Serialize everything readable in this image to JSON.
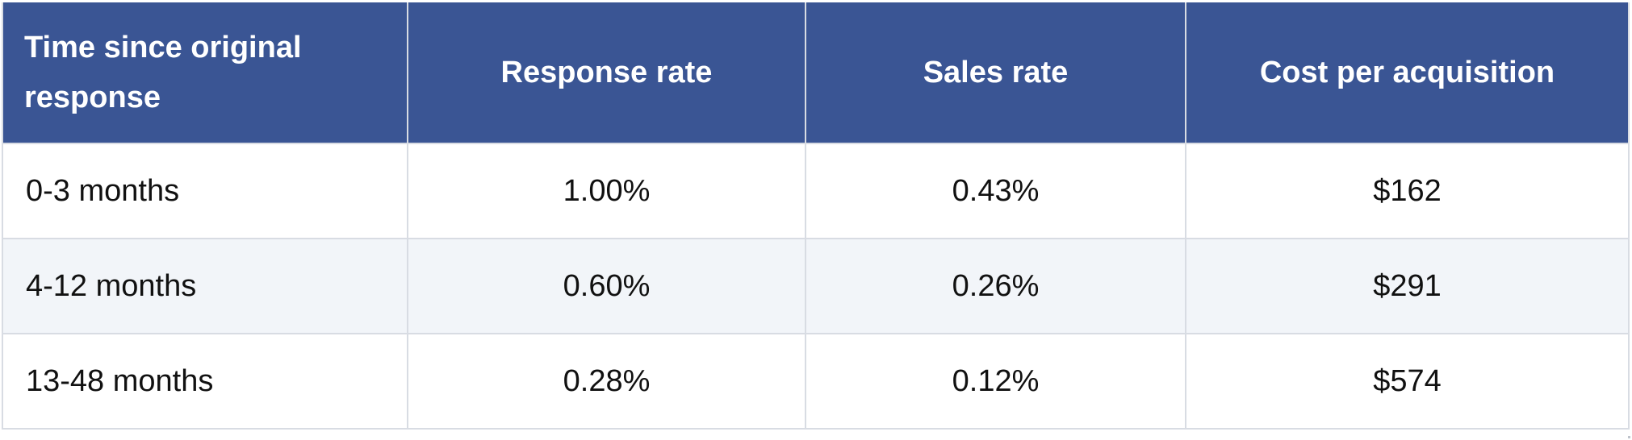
{
  "table": {
    "headers": [
      "Time since original response",
      "Response rate",
      "Sales rate",
      "Cost per acquisition"
    ],
    "rows": [
      [
        "0-3 months",
        "1.00%",
        "0.43%",
        "$162"
      ],
      [
        "4-12 months",
        "0.60%",
        "0.26%",
        "$291"
      ],
      [
        "13-48 months",
        "0.28%",
        "0.12%",
        "$574"
      ]
    ]
  },
  "colors": {
    "header_background": "#3a5594",
    "header_text": "#ffffff",
    "stripe_background": "#f2f5f9",
    "border": "#d8dce3"
  }
}
